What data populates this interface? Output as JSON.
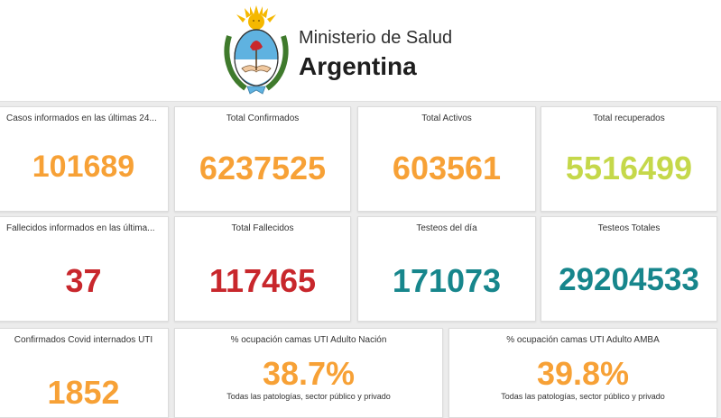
{
  "header": {
    "ministry": "Ministerio de Salud",
    "country": "Argentina",
    "logo": "escudo-argentina-icon"
  },
  "colors": {
    "orange": "#f7a136",
    "green": "#c5d84a",
    "red": "#c8272c",
    "teal": "#17868c"
  },
  "cards": {
    "casos_24h": {
      "title": "Casos informados en las últimas 24...",
      "value": "101689"
    },
    "total_confirmados": {
      "title": "Total Confirmados",
      "value": "6237525"
    },
    "total_activos": {
      "title": "Total Activos",
      "value": "603561"
    },
    "total_recuperados": {
      "title": "Total recuperados",
      "value": "5516499"
    },
    "fallecidos_24h": {
      "title": "Fallecidos informados en las últimа...",
      "value": "37"
    },
    "total_fallecidos": {
      "title": "Total Fallecidos",
      "value": "117465"
    },
    "testeos_dia": {
      "title": "Testeos del día",
      "value": "171073"
    },
    "testeos_totales": {
      "title": "Testeos Totales",
      "value": "29204533"
    },
    "internados_uti": {
      "title": "Confirmados Covid internados UTI",
      "value": "1852"
    },
    "ocupacion_nacion": {
      "title": "% ocupación camas UTI Adulto Nación",
      "value": "38.7%",
      "subtitle": "Todas las patologías, sector público y privado"
    },
    "ocupacion_amba": {
      "title": "% ocupación camas UTI Adulto AMBA",
      "value": "39.8%",
      "subtitle": "Todas las patologías, sector público y privado"
    }
  }
}
